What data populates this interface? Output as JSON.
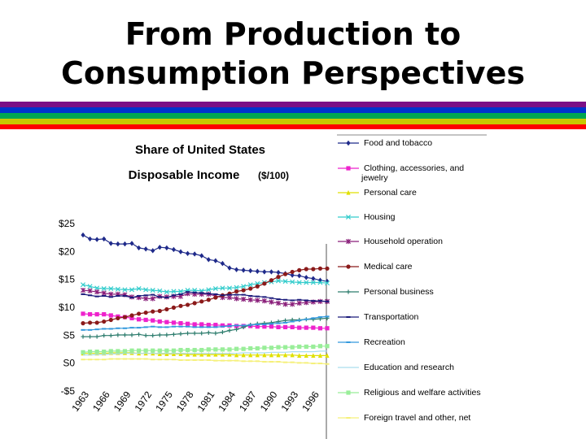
{
  "slide": {
    "title_line1": "From Production to",
    "title_line2": "Consumption Perspectives",
    "stripe_colors": [
      "#7b0f86",
      "#0033cc",
      "#00a651",
      "#c8c800",
      "#ff0000"
    ]
  },
  "chart_data": {
    "type": "line",
    "title_line1": "Share of United States",
    "title_line2": "Disposable Income",
    "title_unit": "($/100)",
    "xlabel": "",
    "ylabel": "",
    "ylim": [
      -5,
      25
    ],
    "yticks": [
      "$25",
      "$20",
      "$15",
      "$10",
      "S5",
      "S0",
      "-$5"
    ],
    "xticks": [
      "1963",
      "1966",
      "1969",
      "1972",
      "1975",
      "1978",
      "1981",
      "1984",
      "1987",
      "1990",
      "1993",
      "1996"
    ],
    "x": [
      1963,
      1964,
      1965,
      1966,
      1967,
      1968,
      1969,
      1970,
      1971,
      1972,
      1973,
      1974,
      1975,
      1976,
      1977,
      1978,
      1979,
      1980,
      1981,
      1982,
      1983,
      1984,
      1985,
      1986,
      1987,
      1988,
      1989,
      1990,
      1991,
      1992,
      1993,
      1994,
      1995,
      1996,
      1997,
      1998
    ],
    "grid": false,
    "legend_position": "right",
    "series": [
      {
        "name": "Food and tobacco",
        "color": "#1f2a8a",
        "marker": "diamond",
        "values": [
          22.8,
          22.1,
          22.0,
          22.1,
          21.3,
          21.2,
          21.2,
          21.3,
          20.5,
          20.3,
          20.0,
          20.6,
          20.5,
          20.2,
          19.8,
          19.5,
          19.4,
          19.1,
          18.4,
          18.2,
          17.7,
          16.9,
          16.6,
          16.5,
          16.4,
          16.3,
          16.2,
          16.2,
          16.1,
          15.9,
          15.6,
          15.5,
          15.2,
          15.0,
          14.7,
          14.5
        ]
      },
      {
        "name": "Clothing, accessories, and jewelry",
        "color": "#ee22cc",
        "marker": "square",
        "values": [
          8.7,
          8.6,
          8.6,
          8.6,
          8.4,
          8.2,
          8.1,
          7.9,
          7.7,
          7.6,
          7.5,
          7.3,
          7.2,
          7.1,
          7.0,
          6.9,
          6.8,
          6.8,
          6.7,
          6.7,
          6.6,
          6.6,
          6.5,
          6.5,
          6.5,
          6.4,
          6.4,
          6.4,
          6.3,
          6.3,
          6.3,
          6.2,
          6.2,
          6.2,
          6.1,
          6.1
        ]
      },
      {
        "name": "Personal care",
        "color": "#e0e000",
        "marker": "triangle",
        "values": [
          1.6,
          1.6,
          1.6,
          1.6,
          1.7,
          1.7,
          1.7,
          1.7,
          1.6,
          1.6,
          1.6,
          1.5,
          1.5,
          1.5,
          1.5,
          1.4,
          1.4,
          1.4,
          1.4,
          1.4,
          1.4,
          1.4,
          1.3,
          1.3,
          1.3,
          1.3,
          1.3,
          1.3,
          1.3,
          1.3,
          1.3,
          1.2,
          1.2,
          1.2,
          1.2,
          1.2
        ]
      },
      {
        "name": "Housing",
        "color": "#33cccc",
        "marker": "x",
        "values": [
          13.9,
          13.6,
          13.3,
          13.2,
          13.2,
          13.1,
          13.0,
          13.0,
          13.2,
          13.0,
          12.9,
          12.8,
          12.6,
          12.7,
          12.7,
          12.9,
          12.9,
          12.8,
          13.0,
          13.2,
          13.3,
          13.3,
          13.4,
          13.6,
          13.9,
          14.1,
          14.3,
          14.4,
          14.6,
          14.5,
          14.4,
          14.3,
          14.3,
          14.3,
          14.3,
          14.2
        ]
      },
      {
        "name": "Household operation",
        "color": "#8a1f7a",
        "marker": "star",
        "values": [
          12.9,
          12.8,
          12.6,
          12.4,
          12.2,
          12.2,
          12.1,
          11.7,
          11.6,
          11.4,
          11.4,
          11.8,
          11.7,
          11.8,
          11.8,
          12.3,
          12.2,
          12.2,
          12.2,
          11.9,
          11.6,
          11.6,
          11.4,
          11.3,
          11.2,
          11.1,
          11.0,
          10.8,
          10.6,
          10.4,
          10.4,
          10.6,
          10.7,
          10.8,
          10.9,
          10.9
        ]
      },
      {
        "name": "Medical care",
        "color": "#8b1a1a",
        "marker": "circle",
        "values": [
          7.0,
          7.1,
          7.1,
          7.3,
          7.6,
          7.9,
          8.1,
          8.4,
          8.7,
          8.9,
          9.1,
          9.2,
          9.5,
          9.8,
          10.1,
          10.3,
          10.6,
          10.9,
          11.2,
          11.6,
          12.0,
          12.3,
          12.7,
          12.9,
          13.2,
          13.6,
          14.1,
          14.7,
          15.3,
          15.8,
          16.2,
          16.5,
          16.7,
          16.7,
          16.8,
          16.8
        ]
      },
      {
        "name": "Personal business",
        "color": "#2e7d6e",
        "marker": "plus",
        "values": [
          4.6,
          4.6,
          4.6,
          4.8,
          4.8,
          4.9,
          4.9,
          4.9,
          5.0,
          4.8,
          4.8,
          4.9,
          4.9,
          5.0,
          5.1,
          5.2,
          5.2,
          5.2,
          5.3,
          5.2,
          5.4,
          5.7,
          5.9,
          6.3,
          6.7,
          6.9,
          7.0,
          7.1,
          7.3,
          7.5,
          7.6,
          7.6,
          7.7,
          7.7,
          7.8,
          7.9
        ]
      },
      {
        "name": "Transportation",
        "color": "#1a1a7a",
        "marker": "dash",
        "values": [
          12.2,
          12.0,
          11.8,
          11.9,
          11.7,
          11.9,
          11.9,
          11.6,
          11.9,
          12.0,
          12.1,
          11.7,
          11.6,
          12.0,
          12.2,
          12.6,
          12.5,
          12.4,
          12.3,
          12.2,
          12.0,
          12.1,
          12.1,
          12.1,
          11.9,
          11.8,
          11.7,
          11.5,
          11.3,
          11.2,
          11.1,
          11.2,
          11.1,
          11.0,
          11.0,
          10.9
        ]
      },
      {
        "name": "Recreation",
        "color": "#3399dd",
        "marker": "dash",
        "values": [
          5.8,
          5.8,
          5.9,
          6.0,
          6.0,
          6.1,
          6.1,
          6.2,
          6.2,
          6.3,
          6.4,
          6.3,
          6.3,
          6.4,
          6.4,
          6.4,
          6.3,
          6.3,
          6.3,
          6.3,
          6.4,
          6.5,
          6.6,
          6.6,
          6.7,
          6.8,
          6.8,
          6.9,
          7.0,
          7.1,
          7.3,
          7.5,
          7.7,
          7.9,
          8.1,
          8.2
        ]
      },
      {
        "name": "Education and research",
        "color": "#aaddee",
        "marker": "none",
        "values": [
          1.3,
          1.3,
          1.4,
          1.4,
          1.5,
          1.5,
          1.6,
          1.6,
          1.6,
          1.6,
          1.6,
          1.6,
          1.6,
          1.6,
          1.6,
          1.6,
          1.6,
          1.6,
          1.6,
          1.6,
          1.6,
          1.6,
          1.6,
          1.7,
          1.7,
          1.7,
          1.7,
          1.8,
          1.8,
          1.8,
          1.9,
          1.9,
          1.9,
          1.9,
          2.0,
          2.0
        ]
      },
      {
        "name": "Religious and welfare activities",
        "color": "#99ee99",
        "marker": "square",
        "values": [
          1.8,
          1.9,
          1.9,
          1.9,
          2.0,
          2.0,
          2.0,
          2.1,
          2.1,
          2.1,
          2.1,
          2.1,
          2.1,
          2.1,
          2.2,
          2.2,
          2.2,
          2.2,
          2.3,
          2.3,
          2.3,
          2.3,
          2.4,
          2.4,
          2.5,
          2.5,
          2.6,
          2.6,
          2.7,
          2.7,
          2.7,
          2.8,
          2.8,
          2.8,
          2.9,
          2.9
        ]
      },
      {
        "name": "Foreign travel and other, net",
        "color": "#f5f07a",
        "marker": "dash",
        "values": [
          0.5,
          0.5,
          0.5,
          0.5,
          0.6,
          0.6,
          0.6,
          0.6,
          0.6,
          0.6,
          0.5,
          0.5,
          0.5,
          0.5,
          0.4,
          0.4,
          0.4,
          0.4,
          0.4,
          0.3,
          0.3,
          0.3,
          0.3,
          0.2,
          0.2,
          0.2,
          0.1,
          0.1,
          0.1,
          0.0,
          0.0,
          -0.1,
          -0.1,
          -0.2,
          -0.2,
          -0.3
        ]
      }
    ]
  }
}
